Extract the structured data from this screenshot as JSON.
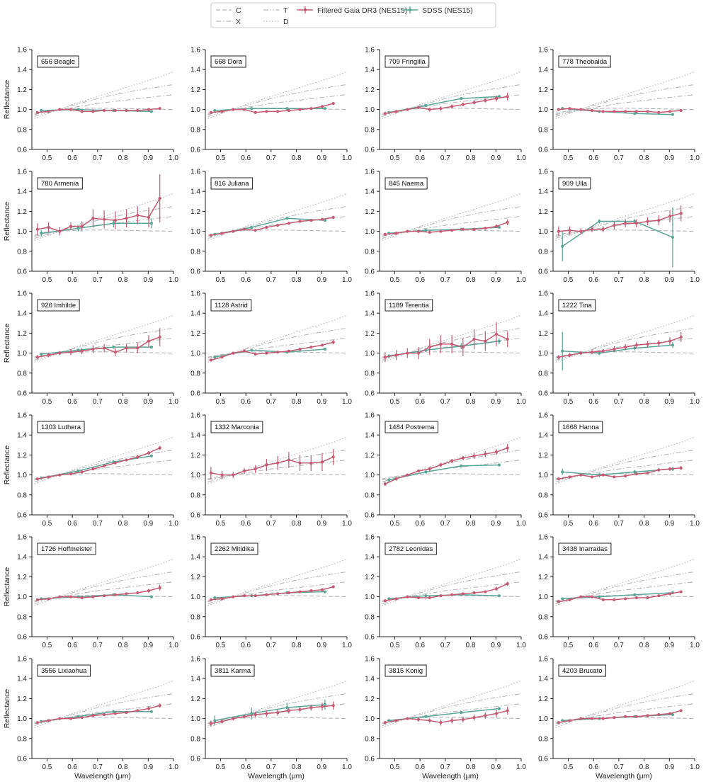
{
  "legend": {
    "items": [
      {
        "key": "C",
        "label": "C",
        "style": "dashed",
        "color": "#b8b8bc"
      },
      {
        "key": "X",
        "label": "X",
        "style": "dashdot",
        "color": "#b8b8bc"
      },
      {
        "key": "T",
        "label": "T",
        "style": "dashdotdot",
        "color": "#b8b8bc"
      },
      {
        "key": "D",
        "label": "D",
        "style": "dotted",
        "color": "#b8b8bc"
      },
      {
        "key": "gaia",
        "label": "Filtered Gaia DR3 (NES15)",
        "style": "marker-line",
        "color": "#c45a73"
      },
      {
        "key": "sdss",
        "label": "SDSS (NES15)",
        "style": "marker-line",
        "color": "#5aa597"
      }
    ]
  },
  "axes": {
    "xlabel": "Wavelength (μm)",
    "ylabel": "Reflectance",
    "xlim": [
      0.44,
      1.0
    ],
    "ylim": [
      0.6,
      1.6
    ],
    "xticks": [
      "0.5",
      "0.6",
      "0.7",
      "0.8",
      "0.9",
      "1.0"
    ],
    "yticks": [
      "0.6",
      "0.8",
      "1.0",
      "1.2",
      "1.4",
      "1.6"
    ]
  },
  "colors": {
    "gaia": "#c45a73",
    "sdss": "#5aa597",
    "template": "#b8b8bc"
  },
  "chart_data": {
    "type": "line",
    "templates": {
      "C": {
        "x": [
          0.45,
          0.5,
          0.55,
          0.6,
          0.65,
          0.7,
          0.75,
          0.8,
          0.85,
          0.9,
          0.95,
          1.0
        ],
        "y": [
          0.96,
          0.985,
          1.0,
          1.008,
          1.012,
          1.013,
          1.012,
          1.01,
          1.008,
          1.005,
          1.003,
          1.0
        ]
      },
      "X": {
        "x": [
          0.45,
          0.5,
          0.55,
          0.6,
          0.65,
          0.7,
          0.75,
          0.8,
          0.85,
          0.9,
          0.95,
          1.0
        ],
        "y": [
          0.95,
          0.975,
          1.0,
          1.02,
          1.04,
          1.06,
          1.075,
          1.09,
          1.105,
          1.12,
          1.135,
          1.15
        ]
      },
      "T": {
        "x": [
          0.45,
          0.5,
          0.55,
          0.6,
          0.65,
          0.7,
          0.75,
          0.8,
          0.85,
          0.9,
          0.95,
          1.0
        ],
        "y": [
          0.93,
          0.965,
          1.0,
          1.04,
          1.075,
          1.11,
          1.14,
          1.165,
          1.19,
          1.21,
          1.23,
          1.25
        ]
      },
      "D": {
        "x": [
          0.45,
          0.5,
          0.55,
          0.6,
          0.65,
          0.7,
          0.75,
          0.8,
          0.85,
          0.9,
          0.95,
          1.0
        ],
        "y": [
          0.91,
          0.955,
          1.0,
          1.05,
          1.09,
          1.13,
          1.17,
          1.21,
          1.25,
          1.29,
          1.33,
          1.38
        ]
      }
    },
    "gaia_x": [
      0.462,
      0.506,
      0.55,
      0.594,
      0.638,
      0.682,
      0.726,
      0.77,
      0.814,
      0.858,
      0.902,
      0.946
    ],
    "sdss_x": [
      0.477,
      0.623,
      0.763,
      0.913
    ],
    "panels": [
      {
        "name": "656 Beagle",
        "gaia": [
          0.97,
          0.98,
          1.0,
          1.0,
          0.98,
          0.98,
          0.99,
          0.99,
          0.99,
          0.99,
          1.0,
          1.01
        ],
        "gaia_err": [
          0.01,
          0.01,
          0.01,
          0.01,
          0.01,
          0.01,
          0.01,
          0.01,
          0.01,
          0.01,
          0.01,
          0.01
        ],
        "sdss": [
          0.99,
          1.0,
          0.99,
          0.98
        ],
        "sdss_err": [
          0.01,
          0.01,
          0.01,
          0.01
        ]
      },
      {
        "name": "668 Dora",
        "gaia": [
          0.97,
          0.98,
          1.0,
          1.0,
          0.97,
          0.98,
          0.98,
          0.99,
          1.0,
          1.01,
          1.03,
          1.06
        ],
        "gaia_err": [
          0.01,
          0.01,
          0.01,
          0.01,
          0.01,
          0.01,
          0.01,
          0.01,
          0.01,
          0.01,
          0.01,
          0.01
        ],
        "sdss": [
          0.99,
          1.01,
          1.01,
          1.01
        ],
        "sdss_err": [
          0.01,
          0.01,
          0.01,
          0.01
        ]
      },
      {
        "name": "709 Fringilla",
        "gaia": [
          0.96,
          0.98,
          1.0,
          1.02,
          1.0,
          1.01,
          1.03,
          1.05,
          1.07,
          1.09,
          1.11,
          1.13
        ],
        "gaia_err": [
          0.01,
          0.01,
          0.01,
          0.01,
          0.02,
          0.02,
          0.02,
          0.02,
          0.02,
          0.02,
          0.03,
          0.04
        ],
        "sdss": [
          0.97,
          1.04,
          1.11,
          1.13
        ],
        "sdss_err": [
          0.01,
          0.01,
          0.01,
          0.01
        ]
      },
      {
        "name": "778 Theobalda",
        "gaia": [
          1.0,
          1.01,
          1.0,
          0.99,
          0.98,
          0.98,
          0.98,
          0.98,
          0.98,
          0.97,
          0.98,
          0.99
        ],
        "gaia_err": [
          0.01,
          0.01,
          0.01,
          0.01,
          0.01,
          0.01,
          0.01,
          0.01,
          0.01,
          0.01,
          0.01,
          0.01
        ],
        "sdss": [
          1.01,
          0.98,
          0.96,
          0.95
        ],
        "sdss_err": [
          0.01,
          0.01,
          0.01,
          0.01
        ]
      },
      {
        "name": "780 Armenia",
        "gaia": [
          1.02,
          1.04,
          1.0,
          1.05,
          1.05,
          1.13,
          1.12,
          1.11,
          1.13,
          1.16,
          1.14,
          1.33
        ],
        "gaia_err": [
          0.06,
          0.05,
          0.04,
          0.04,
          0.05,
          0.09,
          0.09,
          0.09,
          0.09,
          0.09,
          0.1,
          0.24
        ],
        "sdss": [
          0.98,
          1.03,
          1.08,
          1.08
        ],
        "sdss_err": [
          0.03,
          0.03,
          0.04,
          0.05
        ]
      },
      {
        "name": "816 Juliana",
        "gaia": [
          0.96,
          0.98,
          1.0,
          1.02,
          1.01,
          1.04,
          1.06,
          1.08,
          1.1,
          1.11,
          1.12,
          1.14
        ],
        "gaia_err": [
          0.01,
          0.01,
          0.01,
          0.01,
          0.01,
          0.01,
          0.01,
          0.01,
          0.01,
          0.01,
          0.01,
          0.01
        ],
        "sdss": [
          0.97,
          1.04,
          1.13,
          1.11
        ],
        "sdss_err": [
          0.01,
          0.01,
          0.01,
          0.01
        ]
      },
      {
        "name": "845 Naema",
        "gaia": [
          0.97,
          0.98,
          1.0,
          1.0,
          0.99,
          1.0,
          1.01,
          1.02,
          1.02,
          1.03,
          1.05,
          1.09
        ],
        "gaia_err": [
          0.01,
          0.01,
          0.01,
          0.01,
          0.01,
          0.01,
          0.01,
          0.01,
          0.01,
          0.01,
          0.02,
          0.03
        ],
        "sdss": [
          0.98,
          1.01,
          1.02,
          1.04
        ],
        "sdss_err": [
          0.01,
          0.01,
          0.01,
          0.01
        ]
      },
      {
        "name": "909 Ulla",
        "gaia": [
          1.0,
          1.01,
          1.0,
          1.02,
          1.02,
          1.06,
          1.08,
          1.08,
          1.1,
          1.11,
          1.15,
          1.18
        ],
        "gaia_err": [
          0.05,
          0.04,
          0.03,
          0.03,
          0.03,
          0.04,
          0.04,
          0.04,
          0.04,
          0.05,
          0.06,
          0.08
        ],
        "sdss": [
          0.85,
          1.1,
          1.1,
          0.94
        ],
        "sdss_err": [
          0.15,
          0.02,
          0.02,
          0.3
        ]
      },
      {
        "name": "926 Imhilde",
        "gaia": [
          0.96,
          0.98,
          1.0,
          1.01,
          1.02,
          1.04,
          1.05,
          1.01,
          1.05,
          1.05,
          1.12,
          1.16
        ],
        "gaia_err": [
          0.02,
          0.02,
          0.02,
          0.03,
          0.03,
          0.04,
          0.04,
          0.04,
          0.04,
          0.05,
          0.06,
          0.09
        ],
        "sdss": [
          0.99,
          1.03,
          1.06,
          1.06
        ],
        "sdss_err": [
          0.01,
          0.01,
          0.01,
          0.01
        ]
      },
      {
        "name": "1128 Astrid",
        "gaia": [
          0.93,
          0.96,
          1.0,
          1.02,
          0.99,
          1.0,
          1.01,
          1.02,
          1.04,
          1.06,
          1.08,
          1.11
        ],
        "gaia_err": [
          0.01,
          0.01,
          0.01,
          0.01,
          0.01,
          0.01,
          0.01,
          0.01,
          0.01,
          0.01,
          0.01,
          0.02
        ],
        "sdss": [
          0.96,
          1.03,
          1.01,
          1.04
        ],
        "sdss_err": [
          0.01,
          0.01,
          0.01,
          0.01
        ]
      },
      {
        "name": "1189 Terentia",
        "gaia": [
          0.96,
          0.98,
          1.0,
          1.0,
          1.06,
          1.09,
          1.09,
          1.06,
          1.14,
          1.12,
          1.19,
          1.14
        ],
        "gaia_err": [
          0.05,
          0.05,
          0.05,
          0.06,
          0.08,
          0.09,
          0.09,
          0.09,
          0.1,
          0.1,
          0.12,
          0.08
        ],
        "sdss": [
          0.97,
          1.03,
          1.07,
          1.12
        ],
        "sdss_err": [
          0.02,
          0.02,
          0.03,
          0.03
        ]
      },
      {
        "name": "1222 Tina",
        "gaia": [
          0.96,
          0.98,
          1.0,
          1.01,
          1.02,
          1.04,
          1.06,
          1.08,
          1.09,
          1.1,
          1.12,
          1.16
        ],
        "gaia_err": [
          0.02,
          0.02,
          0.02,
          0.02,
          0.02,
          0.03,
          0.03,
          0.03,
          0.03,
          0.03,
          0.04,
          0.05
        ],
        "sdss": [
          1.02,
          1.0,
          1.05,
          1.08
        ],
        "sdss_err": [
          0.19,
          0.02,
          0.02,
          0.03
        ]
      },
      {
        "name": "1303 Luthera",
        "gaia": [
          0.96,
          0.98,
          1.0,
          1.01,
          1.03,
          1.06,
          1.09,
          1.12,
          1.15,
          1.18,
          1.22,
          1.27
        ],
        "gaia_err": [
          0.01,
          0.01,
          0.01,
          0.01,
          0.01,
          0.01,
          0.01,
          0.01,
          0.01,
          0.02,
          0.02,
          0.02
        ],
        "sdss": [
          0.97,
          1.04,
          1.13,
          1.19
        ],
        "sdss_err": [
          0.01,
          0.01,
          0.01,
          0.01
        ]
      },
      {
        "name": "1332 Marconia",
        "gaia": [
          1.02,
          1.0,
          1.0,
          1.04,
          1.06,
          1.1,
          1.12,
          1.15,
          1.12,
          1.12,
          1.13,
          1.18
        ],
        "gaia_err": [
          0.06,
          0.04,
          0.03,
          0.03,
          0.04,
          0.06,
          0.07,
          0.08,
          0.08,
          0.08,
          0.09,
          0.08
        ],
        "sdss": [],
        "sdss_err": []
      },
      {
        "name": "1484 Postrema",
        "gaia": [
          0.91,
          0.96,
          1.0,
          1.04,
          1.06,
          1.1,
          1.14,
          1.17,
          1.19,
          1.21,
          1.23,
          1.27
        ],
        "gaia_err": [
          0.02,
          0.01,
          0.01,
          0.01,
          0.02,
          0.02,
          0.02,
          0.02,
          0.03,
          0.03,
          0.03,
          0.04
        ],
        "sdss": [
          0.95,
          1.03,
          1.09,
          1.1
        ],
        "sdss_err": [
          0.01,
          0.01,
          0.01,
          0.01
        ]
      },
      {
        "name": "1668 Hanna",
        "gaia": [
          0.96,
          0.98,
          1.0,
          0.98,
          1.0,
          0.98,
          0.99,
          1.01,
          1.02,
          1.05,
          1.06,
          1.07
        ],
        "gaia_err": [
          0.01,
          0.01,
          0.01,
          0.01,
          0.01,
          0.01,
          0.01,
          0.01,
          0.01,
          0.02,
          0.02,
          0.02
        ],
        "sdss": [
          1.03,
          1.0,
          1.03,
          1.06
        ],
        "sdss_err": [
          0.03,
          0.02,
          0.02,
          0.02
        ]
      },
      {
        "name": "1726 Hoffmeister",
        "gaia": [
          0.97,
          0.98,
          1.0,
          1.0,
          0.99,
          1.0,
          1.01,
          1.02,
          1.03,
          1.04,
          1.06,
          1.09
        ],
        "gaia_err": [
          0.01,
          0.01,
          0.01,
          0.01,
          0.01,
          0.01,
          0.01,
          0.01,
          0.01,
          0.01,
          0.02,
          0.03
        ],
        "sdss": [
          0.98,
          1.0,
          1.02,
          1.0
        ],
        "sdss_err": [
          0.01,
          0.01,
          0.01,
          0.01
        ]
      },
      {
        "name": "2262 Mitidika",
        "gaia": [
          0.97,
          0.98,
          1.0,
          1.01,
          1.01,
          1.02,
          1.03,
          1.04,
          1.05,
          1.06,
          1.07,
          1.1
        ],
        "gaia_err": [
          0.01,
          0.01,
          0.01,
          0.01,
          0.01,
          0.01,
          0.01,
          0.01,
          0.01,
          0.01,
          0.01,
          0.01
        ],
        "sdss": [
          0.99,
          1.01,
          1.04,
          1.05
        ],
        "sdss_err": [
          0.01,
          0.01,
          0.01,
          0.01
        ]
      },
      {
        "name": "2782 Leonidas",
        "gaia": [
          0.96,
          0.98,
          1.0,
          0.99,
          0.99,
          1.01,
          1.02,
          1.03,
          1.04,
          1.05,
          1.08,
          1.13
        ],
        "gaia_err": [
          0.01,
          0.01,
          0.01,
          0.01,
          0.01,
          0.01,
          0.01,
          0.01,
          0.01,
          0.01,
          0.02,
          0.02
        ],
        "sdss": [
          0.98,
          1.01,
          1.02,
          1.01
        ],
        "sdss_err": [
          0.01,
          0.01,
          0.01,
          0.01
        ]
      },
      {
        "name": "3438 Inarradas",
        "gaia": [
          0.95,
          0.97,
          1.0,
          1.0,
          0.97,
          0.97,
          0.98,
          0.99,
          0.99,
          1.01,
          1.03,
          1.05
        ],
        "gaia_err": [
          0.01,
          0.01,
          0.01,
          0.01,
          0.01,
          0.01,
          0.01,
          0.01,
          0.01,
          0.01,
          0.01,
          0.01
        ],
        "sdss": [
          0.98,
          1.0,
          1.02,
          1.04
        ],
        "sdss_err": [
          0.01,
          0.01,
          0.01,
          0.01
        ]
      },
      {
        "name": "3556 Lixiaohua",
        "gaia": [
          0.96,
          0.98,
          1.0,
          1.0,
          1.01,
          1.03,
          1.04,
          1.05,
          1.06,
          1.08,
          1.1,
          1.13
        ],
        "gaia_err": [
          0.01,
          0.01,
          0.01,
          0.01,
          0.01,
          0.01,
          0.01,
          0.01,
          0.01,
          0.01,
          0.02,
          0.02
        ],
        "sdss": [
          0.97,
          1.02,
          1.07,
          1.07
        ],
        "sdss_err": [
          0.01,
          0.01,
          0.01,
          0.01
        ]
      },
      {
        "name": "3811 Karma",
        "gaia": [
          0.95,
          0.97,
          1.0,
          1.02,
          1.04,
          1.05,
          1.06,
          1.08,
          1.09,
          1.11,
          1.12,
          1.13
        ],
        "gaia_err": [
          0.03,
          0.02,
          0.02,
          0.02,
          0.03,
          0.03,
          0.03,
          0.03,
          0.03,
          0.03,
          0.04,
          0.04
        ],
        "sdss": [
          0.98,
          1.05,
          1.11,
          1.14
        ],
        "sdss_err": [
          0.05,
          0.06,
          0.05,
          0.05
        ]
      },
      {
        "name": "3815 Konig",
        "gaia": [
          0.96,
          0.98,
          1.0,
          0.99,
          0.98,
          0.96,
          0.98,
          0.99,
          1.01,
          1.03,
          1.05,
          1.08
        ],
        "gaia_err": [
          0.01,
          0.01,
          0.01,
          0.02,
          0.02,
          0.03,
          0.03,
          0.03,
          0.03,
          0.03,
          0.04,
          0.04
        ],
        "sdss": [
          0.98,
          1.02,
          1.06,
          1.1
        ],
        "sdss_err": [
          0.01,
          0.01,
          0.01,
          0.01
        ]
      },
      {
        "name": "4203 Brucato",
        "gaia": [
          0.96,
          0.98,
          1.0,
          1.0,
          1.0,
          1.01,
          1.02,
          1.02,
          1.03,
          1.04,
          1.05,
          1.08
        ],
        "gaia_err": [
          0.01,
          0.01,
          0.01,
          0.01,
          0.01,
          0.01,
          0.01,
          0.01,
          0.01,
          0.01,
          0.01,
          0.01
        ],
        "sdss": [
          0.98,
          1.0,
          1.02,
          1.04
        ],
        "sdss_err": [
          0.01,
          0.01,
          0.01,
          0.01
        ]
      }
    ]
  }
}
